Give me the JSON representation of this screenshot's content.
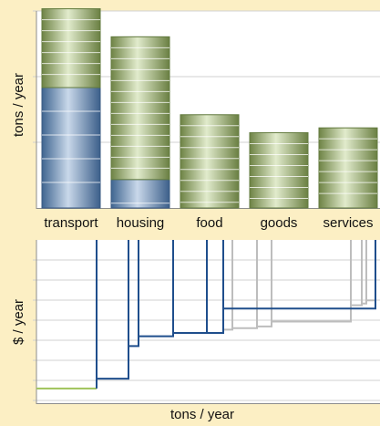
{
  "chart_data": [
    {
      "type": "bar",
      "stacked": true,
      "ylabel": "tons / year",
      "categories": [
        "transport",
        "housing",
        "food",
        "goods",
        "services"
      ],
      "ylim": [
        0,
        4.5
      ],
      "ticks": [
        0,
        1.5,
        3,
        4.5
      ],
      "grid": "horizontal",
      "series": [
        {
          "values": [
            2.75,
            0.65,
            0,
            0,
            0
          ]
        },
        {
          "values": [
            1.8,
            3.26,
            2.13,
            1.72,
            1.83
          ]
        }
      ],
      "colors": {
        "lower": "#6e8fb5",
        "upper": "#92a86a"
      }
    },
    {
      "type": "line",
      "xlabel": "tons / year",
      "ylabel": "$ / year",
      "grid": "horizontal",
      "series": [
        {
          "color": "#9fc35a",
          "points": [
            [
              0,
              0.9
            ],
            [
              66,
              0.9
            ]
          ]
        },
        {
          "color": "#1f4e8c",
          "points": [
            [
              66,
              0.9
            ],
            [
              66,
              10
            ],
            [
              66,
              1.5
            ],
            [
              101,
              1.5
            ],
            [
              101,
              10
            ],
            [
              101,
              3.5
            ],
            [
              112,
              3.5
            ],
            [
              112,
              10
            ],
            [
              112,
              4.1
            ],
            [
              150,
              4.1
            ],
            [
              150,
              10
            ],
            [
              150,
              4.3
            ],
            [
              187,
              4.3
            ],
            [
              187,
              10
            ],
            [
              187,
              4.3
            ],
            [
              205,
              4.3
            ],
            [
              205,
              10
            ],
            [
              205,
              5.8
            ],
            [
              372,
              5.8
            ],
            [
              372,
              10
            ]
          ]
        },
        {
          "color": "#bdbdbd",
          "points": [
            [
              205,
              10
            ],
            [
              205,
              4.5
            ],
            [
              215,
              4.5
            ],
            [
              215,
              10
            ],
            [
              215,
              4.6
            ],
            [
              242,
              4.6
            ],
            [
              242,
              10
            ],
            [
              242,
              4.7
            ],
            [
              258,
              4.7
            ],
            [
              258,
              10
            ],
            [
              258,
              5.0
            ],
            [
              345,
              5.0
            ],
            [
              345,
              10
            ],
            [
              345,
              6.0
            ],
            [
              357,
              6.0
            ],
            [
              357,
              10
            ],
            [
              357,
              6.1
            ],
            [
              362,
              6.1
            ],
            [
              362,
              10
            ],
            [
              362,
              6.3
            ],
            [
              372,
              6.3
            ],
            [
              372,
              10
            ]
          ]
        }
      ]
    }
  ]
}
